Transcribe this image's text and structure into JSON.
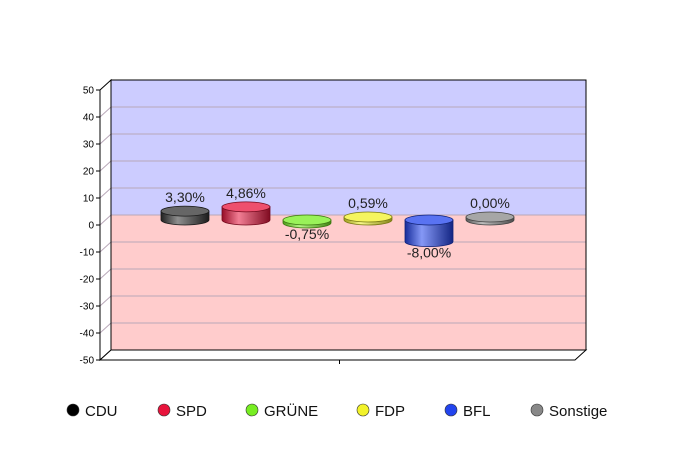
{
  "chart_data": {
    "type": "bar",
    "categories": [
      "CDU",
      "SPD",
      "GRÜNE",
      "FDP",
      "BFL",
      "Sonstige"
    ],
    "values": [
      3.3,
      4.86,
      -0.75,
      0.59,
      -8.0,
      0.0
    ],
    "value_labels": [
      "3,30%",
      "4,86%",
      "-0,75%",
      "0,59%",
      "-8,00%",
      "0,00%"
    ],
    "colors": [
      "#333333",
      "#e8143c",
      "#77ee22",
      "#f2f22a",
      "#2244ee",
      "#888888"
    ],
    "ylim": [
      -50,
      50
    ],
    "yticks": [
      50,
      40,
      30,
      20,
      10,
      0,
      -10,
      -20,
      -30,
      -40,
      -50
    ],
    "grid": true,
    "positive_region_color": "#ccccff",
    "negative_region_color": "#ffcccc",
    "legend_position": "bottom",
    "style": "3d-cylinder"
  }
}
